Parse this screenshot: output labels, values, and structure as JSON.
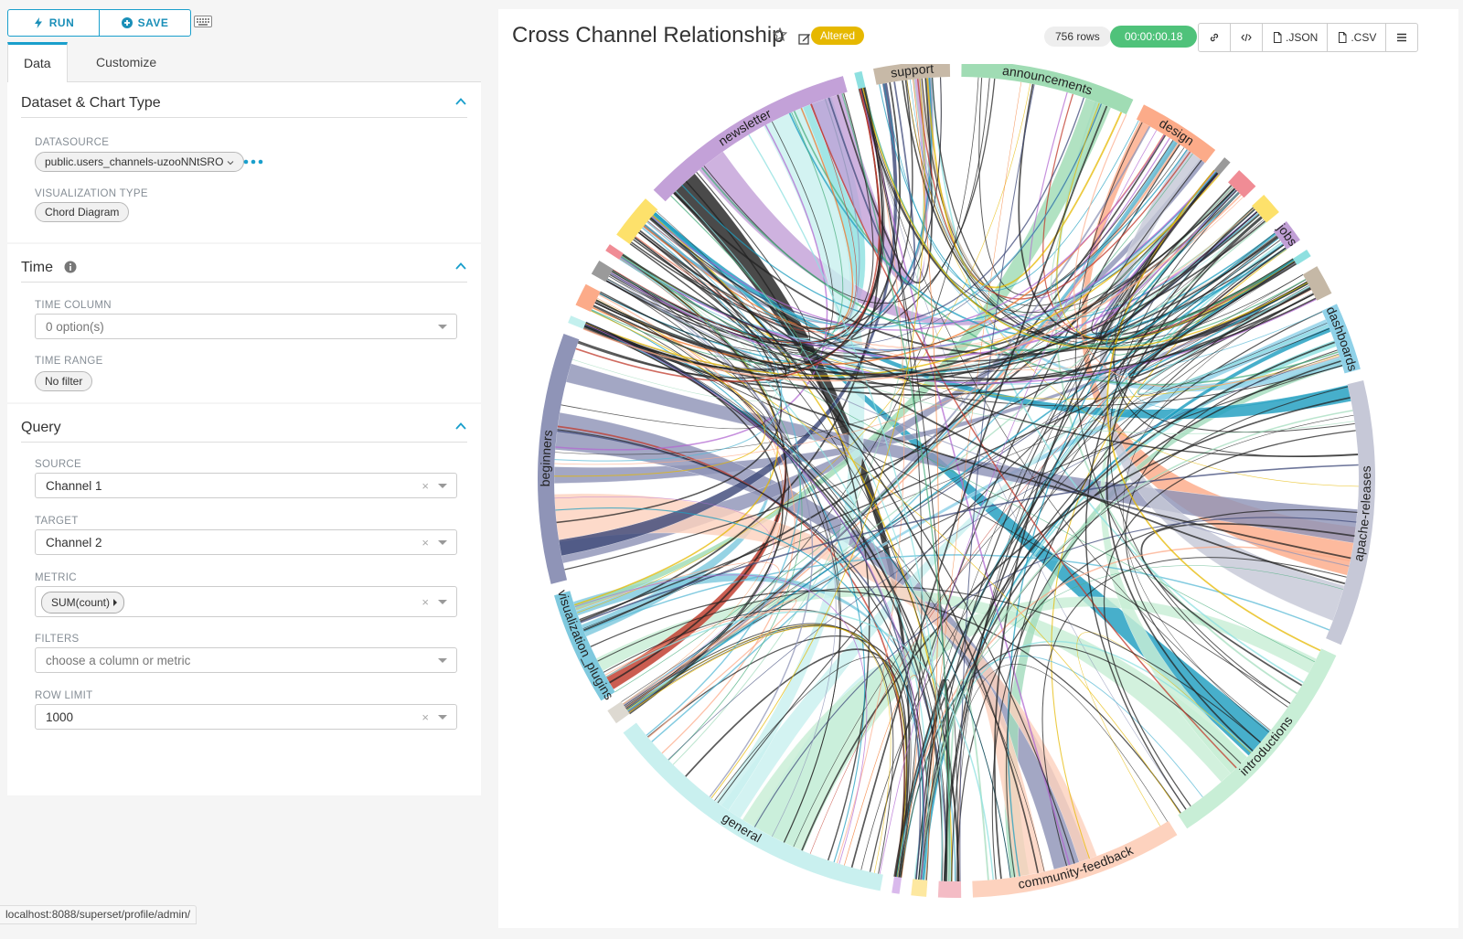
{
  "toolbar": {
    "run_label": "RUN",
    "save_label": "SAVE"
  },
  "tabs": [
    {
      "label": "Data",
      "active": true
    },
    {
      "label": "Customize",
      "active": false
    }
  ],
  "sections": {
    "dataset": {
      "title": "Dataset & Chart Type",
      "datasource_label": "DATASOURCE",
      "datasource_value": "public.users_channels-uzooNNtSRO",
      "viz_type_label": "VISUALIZATION TYPE",
      "viz_type_value": "Chord Diagram"
    },
    "time": {
      "title": "Time",
      "time_column_label": "TIME COLUMN",
      "time_column_value": "0 option(s)",
      "time_range_label": "TIME RANGE",
      "time_range_value": "No filter"
    },
    "query": {
      "title": "Query",
      "source_label": "SOURCE",
      "source_value": "Channel 1",
      "target_label": "TARGET",
      "target_value": "Channel 2",
      "metric_label": "METRIC",
      "metric_value": "SUM(count)",
      "filters_label": "FILTERS",
      "filters_placeholder": "choose a column or metric",
      "row_limit_label": "ROW LIMIT",
      "row_limit_value": "1000"
    }
  },
  "status_url": "localhost:8088/superset/profile/admin/",
  "chart_header": {
    "title": "Cross Channel Relationship",
    "altered_label": "Altered",
    "rows_label": "756 rows",
    "timer_label": "00:00:00.18",
    "json_label": ".JSON",
    "csv_label": ".CSV"
  },
  "colors": {
    "accent": "#1a9fcc",
    "altered": "#e6b800",
    "timer": "#4fc27a"
  },
  "chart_data": {
    "type": "chord",
    "groups": [
      {
        "name": "support",
        "color": "#c7b9a7",
        "value": 10
      },
      {
        "name": "announcements",
        "color": "#a0dcb4",
        "value": 23
      },
      {
        "name": "design",
        "color": "#fcab89",
        "value": 11
      },
      {
        "name": "",
        "color": "#9a9a9a",
        "value": 1
      },
      {
        "name": "",
        "color": "#f08c95",
        "value": 3
      },
      {
        "name": "",
        "color": "#fde16b",
        "value": 3
      },
      {
        "name": "jobs",
        "color": "#c19fd6",
        "value": 3
      },
      {
        "name": "",
        "color": "#8ee0e0",
        "value": 1
      },
      {
        "name": "",
        "color": "#c5b8a6",
        "value": 4
      },
      {
        "name": "dashboards",
        "color": "#8fd1e8",
        "value": 9
      },
      {
        "name": "apache-releases",
        "color": "#c6c8d7",
        "value": 35
      },
      {
        "name": "introductions",
        "color": "#c8eed6",
        "value": 30
      },
      {
        "name": "community-feedback",
        "color": "#fdd2be",
        "value": 28
      },
      {
        "name": "",
        "color": "#f4bcc5",
        "value": 3
      },
      {
        "name": "",
        "color": "#fde8a0",
        "value": 2
      },
      {
        "name": "",
        "color": "#d9b9ec",
        "value": 1
      },
      {
        "name": "general",
        "color": "#c9f0ef",
        "value": 40
      },
      {
        "name": "",
        "color": "#ddd9d1",
        "value": 2
      },
      {
        "name": "visualization_plugins",
        "color": "#7fc9de",
        "value": 15
      },
      {
        "name": "beginners",
        "color": "#8f94b7",
        "value": 33
      },
      {
        "name": "",
        "color": "#c3f0ee",
        "value": 1
      },
      {
        "name": "",
        "color": "#fcab89",
        "value": 3
      },
      {
        "name": "",
        "color": "#9a9a9a",
        "value": 2
      },
      {
        "name": "",
        "color": "#f08c95",
        "value": 1
      },
      {
        "name": "",
        "color": "#fde16b",
        "value": 6
      },
      {
        "name": "newsletter",
        "color": "#c3a1d8",
        "value": 29
      },
      {
        "name": "",
        "color": "#8ee0e0",
        "value": 1
      }
    ],
    "ribbon_colors": [
      "#3f4a7a",
      "#a4dcbd",
      "#fcab89",
      "#8ee0e0",
      "#8f94b7",
      "#4caf7f",
      "#f3762a",
      "#222222",
      "#1e9ebf",
      "#b36ad1",
      "#e6b800",
      "#c0392b",
      "#5ab9d6"
    ]
  }
}
